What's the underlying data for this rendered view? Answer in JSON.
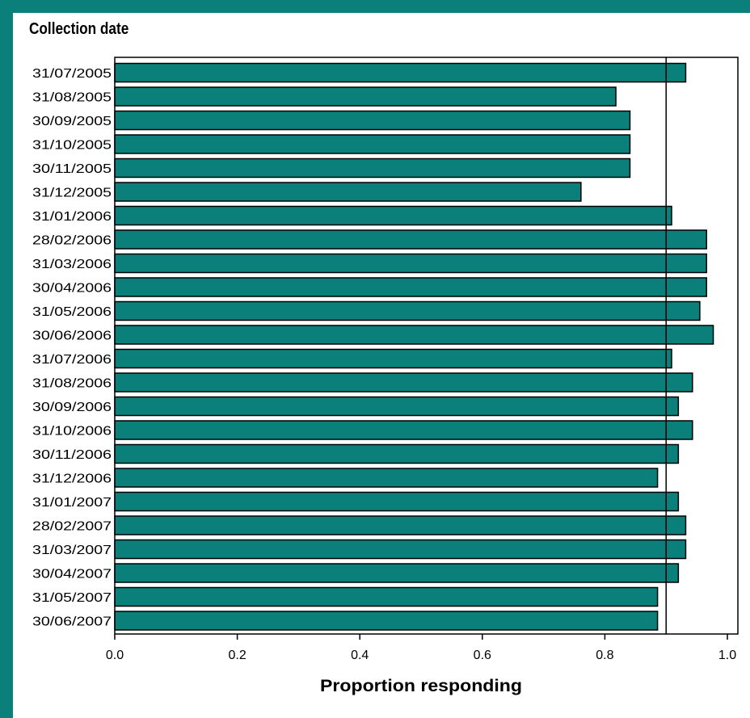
{
  "chart_data": {
    "type": "bar",
    "orientation": "horizontal",
    "title": "Collection date",
    "xlabel": "Proportion responding",
    "ylabel": "",
    "xlim": [
      0,
      1.02
    ],
    "x_ticks": [
      "0.0",
      "0.2",
      "0.4",
      "0.6",
      "0.8",
      "1.0"
    ],
    "reference_line": 0.9,
    "grid": false,
    "bar_color": "#0b807a",
    "categories": [
      "31/07/2005",
      "31/08/2005",
      "30/09/2005",
      "31/10/2005",
      "30/11/2005",
      "31/12/2005",
      "31/01/2006",
      "28/02/2006",
      "31/03/2006",
      "30/04/2006",
      "31/05/2006",
      "30/06/2006",
      "31/07/2006",
      "31/08/2006",
      "30/09/2006",
      "31/10/2006",
      "30/11/2006",
      "31/12/2006",
      "31/01/2007",
      "28/02/2007",
      "31/03/2007",
      "30/04/2007",
      "31/05/2007",
      "30/06/2007"
    ],
    "values": [
      0.932,
      0.818,
      0.841,
      0.841,
      0.841,
      0.761,
      0.909,
      0.966,
      0.966,
      0.966,
      0.955,
      0.977,
      0.909,
      0.943,
      0.92,
      0.943,
      0.92,
      0.886,
      0.92,
      0.932,
      0.932,
      0.92,
      0.886,
      0.886
    ]
  }
}
